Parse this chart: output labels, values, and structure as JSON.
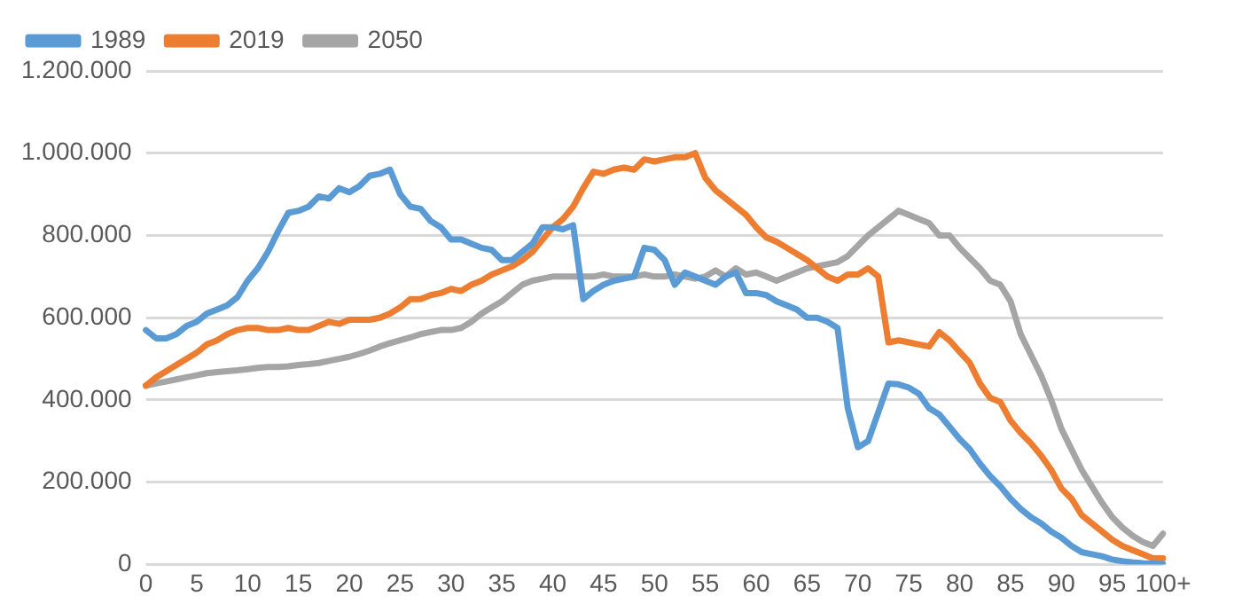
{
  "chart_data": {
    "type": "line",
    "categories": [
      "0",
      null,
      null,
      null,
      null,
      "5",
      null,
      null,
      null,
      null,
      "10",
      null,
      null,
      null,
      null,
      "15",
      null,
      null,
      null,
      null,
      "20",
      null,
      null,
      null,
      null,
      "25",
      null,
      null,
      null,
      null,
      "30",
      null,
      null,
      null,
      null,
      "35",
      null,
      null,
      null,
      null,
      "40",
      null,
      null,
      null,
      null,
      "45",
      null,
      null,
      null,
      null,
      "50",
      null,
      null,
      null,
      null,
      "55",
      null,
      null,
      null,
      null,
      "60",
      null,
      null,
      null,
      null,
      "65",
      null,
      null,
      null,
      null,
      "70",
      null,
      null,
      null,
      null,
      "75",
      null,
      null,
      null,
      null,
      "80",
      null,
      null,
      null,
      null,
      "85",
      null,
      null,
      null,
      null,
      "90",
      null,
      null,
      null,
      null,
      "95",
      null,
      null,
      null,
      null,
      "100+"
    ],
    "series": [
      {
        "name": "1989",
        "color": "#5b9bd5",
        "values": [
          570000,
          550000,
          550000,
          560000,
          580000,
          590000,
          610000,
          620000,
          630000,
          650000,
          690000,
          720000,
          760000,
          810000,
          855000,
          860000,
          870000,
          895000,
          890000,
          915000,
          905000,
          920000,
          945000,
          950000,
          960000,
          900000,
          870000,
          865000,
          835000,
          820000,
          790000,
          790000,
          780000,
          770000,
          765000,
          740000,
          740000,
          760000,
          780000,
          820000,
          820000,
          815000,
          825000,
          645000,
          665000,
          680000,
          690000,
          695000,
          700000,
          770000,
          765000,
          740000,
          680000,
          710000,
          700000,
          690000,
          680000,
          700000,
          710000,
          660000,
          660000,
          655000,
          640000,
          630000,
          620000,
          600000,
          600000,
          590000,
          575000,
          380000,
          285000,
          300000,
          370000,
          440000,
          438000,
          430000,
          415000,
          380000,
          365000,
          335000,
          305000,
          280000,
          245000,
          215000,
          190000,
          160000,
          135000,
          115000,
          100000,
          80000,
          65000,
          45000,
          30000,
          25000,
          20000,
          12000,
          8000,
          5000,
          3000,
          2000,
          1000
        ]
      },
      {
        "name": "2019",
        "color": "#ed7d31",
        "values": [
          435000,
          455000,
          470000,
          485000,
          500000,
          515000,
          535000,
          545000,
          560000,
          570000,
          575000,
          575000,
          570000,
          570000,
          575000,
          570000,
          570000,
          580000,
          590000,
          585000,
          595000,
          595000,
          595000,
          600000,
          610000,
          625000,
          645000,
          645000,
          655000,
          660000,
          670000,
          665000,
          680000,
          690000,
          705000,
          715000,
          725000,
          740000,
          760000,
          790000,
          820000,
          840000,
          870000,
          915000,
          955000,
          950000,
          960000,
          965000,
          960000,
          985000,
          980000,
          985000,
          990000,
          990000,
          1000000,
          940000,
          910000,
          890000,
          870000,
          850000,
          820000,
          795000,
          785000,
          770000,
          755000,
          740000,
          720000,
          700000,
          690000,
          705000,
          705000,
          720000,
          700000,
          540000,
          545000,
          540000,
          535000,
          530000,
          565000,
          545000,
          517000,
          490000,
          440000,
          405000,
          395000,
          350000,
          320000,
          295000,
          265000,
          230000,
          185000,
          160000,
          120000,
          100000,
          80000,
          60000,
          45000,
          35000,
          25000,
          15000,
          15000
        ]
      },
      {
        "name": "2050",
        "color": "#a5a5a5",
        "values": [
          435000,
          440000,
          445000,
          450000,
          455000,
          460000,
          465000,
          468000,
          470000,
          472000,
          475000,
          478000,
          480000,
          480000,
          482000,
          485000,
          487000,
          490000,
          495000,
          500000,
          505000,
          512000,
          520000,
          530000,
          538000,
          545000,
          552000,
          560000,
          565000,
          570000,
          570000,
          575000,
          590000,
          610000,
          625000,
          640000,
          660000,
          680000,
          690000,
          695000,
          700000,
          700000,
          700000,
          700000,
          700000,
          705000,
          700000,
          700000,
          700000,
          705000,
          700000,
          700000,
          705000,
          700000,
          695000,
          700000,
          715000,
          700000,
          720000,
          705000,
          710000,
          700000,
          690000,
          700000,
          710000,
          720000,
          725000,
          730000,
          735000,
          750000,
          775000,
          800000,
          820000,
          840000,
          860000,
          850000,
          840000,
          830000,
          800000,
          800000,
          770000,
          745000,
          720000,
          690000,
          680000,
          640000,
          560000,
          510000,
          460000,
          400000,
          330000,
          280000,
          230000,
          190000,
          150000,
          115000,
          90000,
          70000,
          55000,
          45000,
          75000
        ]
      }
    ],
    "ylim": [
      0,
      1200000
    ],
    "yticks": [
      0,
      {
        "value": 200000,
        "label": "200.000"
      },
      {
        "value": 400000,
        "label": "400.000"
      },
      {
        "value": 600000,
        "label": "600.000"
      },
      {
        "value": 800000,
        "label": "800.000"
      },
      {
        "value": 1000000,
        "label": "1.000.000"
      },
      {
        "value": 1200000,
        "label": "1.200.000"
      }
    ],
    "grid": "y",
    "legend": "top left",
    "marker": "none",
    "line_style": "solid"
  }
}
